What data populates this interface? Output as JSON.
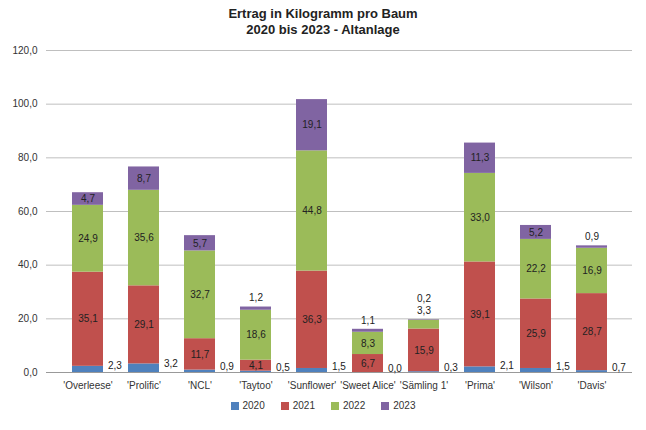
{
  "chart_data": {
    "type": "bar",
    "title": "Ertrag in Kilogramm pro Baum",
    "subtitle": "2020 bis 2023 - Altanlage",
    "categories": [
      "'Overleese'",
      "'Prolific'",
      "'NCL'",
      "'Taytoo'",
      "'Sunflower'",
      "'Sweet Alice'",
      "'Sämling 1'",
      "'Prima'",
      "'Wilson'",
      "'Davis'"
    ],
    "series": [
      {
        "name": "2020",
        "color": "#4F81BD",
        "values": [
          2.3,
          3.2,
          0.9,
          0.5,
          1.5,
          0.0,
          0.3,
          2.1,
          1.5,
          0.7
        ],
        "value_labels": [
          "2,3",
          "3,2",
          "0,9",
          "0,5",
          "1,5",
          "0,0",
          "0,3",
          "2,1",
          "1,5",
          "0,7"
        ]
      },
      {
        "name": "2021",
        "color": "#C0504D",
        "values": [
          35.1,
          29.1,
          11.7,
          4.1,
          36.3,
          6.7,
          15.9,
          39.1,
          25.9,
          28.7
        ],
        "value_labels": [
          "35,1",
          "29,1",
          "11,7",
          "4,1",
          "36,3",
          "6,7",
          "15,9",
          "39,1",
          "25,9",
          "28,7"
        ]
      },
      {
        "name": "2022",
        "color": "#9BBB59",
        "values": [
          24.9,
          35.6,
          32.7,
          18.6,
          44.8,
          8.3,
          3.3,
          33.0,
          22.2,
          16.9
        ],
        "value_labels": [
          "24,9",
          "35,6",
          "32,7",
          "18,6",
          "44,8",
          "8,3",
          "3,3",
          "33,0",
          "22,2",
          "16,9"
        ]
      },
      {
        "name": "2023",
        "color": "#8064A2",
        "values": [
          4.7,
          8.7,
          5.7,
          1.2,
          19.1,
          1.1,
          0.2,
          11.3,
          5.2,
          0.9
        ],
        "value_labels": [
          "4,7",
          "8,7",
          "5,7",
          "1,2",
          "19,1",
          "1,1",
          "0,2",
          "11,3",
          "5,2",
          "0,9"
        ]
      }
    ],
    "ylim": [
      0,
      120
    ],
    "yticks": [
      {
        "value": 0,
        "label": "0,0"
      },
      {
        "value": 20,
        "label": "20,0"
      },
      {
        "value": 40,
        "label": "40,0"
      },
      {
        "value": 60,
        "label": "60,0"
      },
      {
        "value": 80,
        "label": "80,0"
      },
      {
        "value": 100,
        "label": "100,0"
      },
      {
        "value": 120,
        "label": "120,0"
      }
    ],
    "grid": true,
    "stacked": true,
    "data_labels": true,
    "legend": "bottom"
  }
}
